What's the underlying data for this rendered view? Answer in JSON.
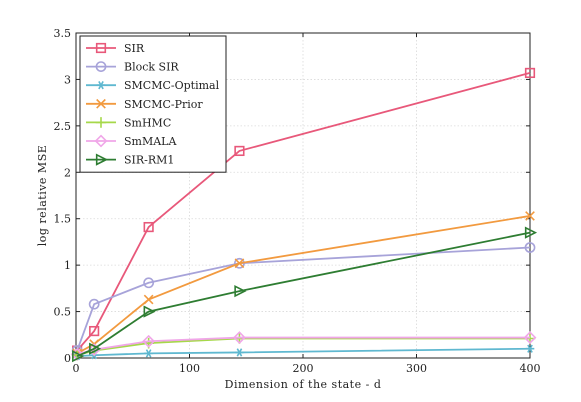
{
  "chart_data": {
    "type": "line",
    "xlabel": "Dimension of the state - d",
    "ylabel": "log relative MSE",
    "xlim": [
      0,
      400
    ],
    "ylim": [
      0,
      3.5
    ],
    "xticks": [
      0,
      100,
      200,
      300,
      400
    ],
    "yticks": [
      0,
      0.5,
      1,
      1.5,
      2,
      2.5,
      3,
      3.5
    ],
    "xtick_labels": [
      "0",
      "100",
      "200",
      "300",
      "400"
    ],
    "ytick_labels": [
      "0",
      "0.5",
      "1",
      "1.5",
      "2",
      "2.5",
      "3",
      "3.5"
    ],
    "grid": true,
    "legend_position": "top-left",
    "x": [
      1,
      16,
      64,
      144,
      400
    ],
    "series": [
      {
        "name": "SIR",
        "color": "#e8587a",
        "marker": "square",
        "values": [
          0.08,
          0.29,
          1.41,
          2.23,
          3.07
        ]
      },
      {
        "name": "Block SIR",
        "color": "#a7a3d9",
        "marker": "circle",
        "values": [
          0.08,
          0.58,
          0.81,
          1.02,
          1.19
        ]
      },
      {
        "name": "SMCMC-Optimal",
        "color": "#5fb8d0",
        "marker": "asterisk",
        "values": [
          0.02,
          0.03,
          0.05,
          0.06,
          0.1
        ]
      },
      {
        "name": "SMCMC-Prior",
        "color": "#f29a3f",
        "marker": "x",
        "values": [
          0.05,
          0.15,
          0.63,
          1.02,
          1.53
        ]
      },
      {
        "name": "SmHMC",
        "color": "#a6d84a",
        "marker": "plus",
        "values": [
          0.03,
          0.08,
          0.16,
          0.21,
          0.21
        ]
      },
      {
        "name": "SmMALA",
        "color": "#f0a6e8",
        "marker": "diamond",
        "values": [
          0.04,
          0.09,
          0.18,
          0.22,
          0.22
        ]
      },
      {
        "name": "SIR-RM1",
        "color": "#2e7d32",
        "marker": "triangle-right",
        "values": [
          0.02,
          0.1,
          0.5,
          0.72,
          1.35
        ]
      }
    ]
  }
}
